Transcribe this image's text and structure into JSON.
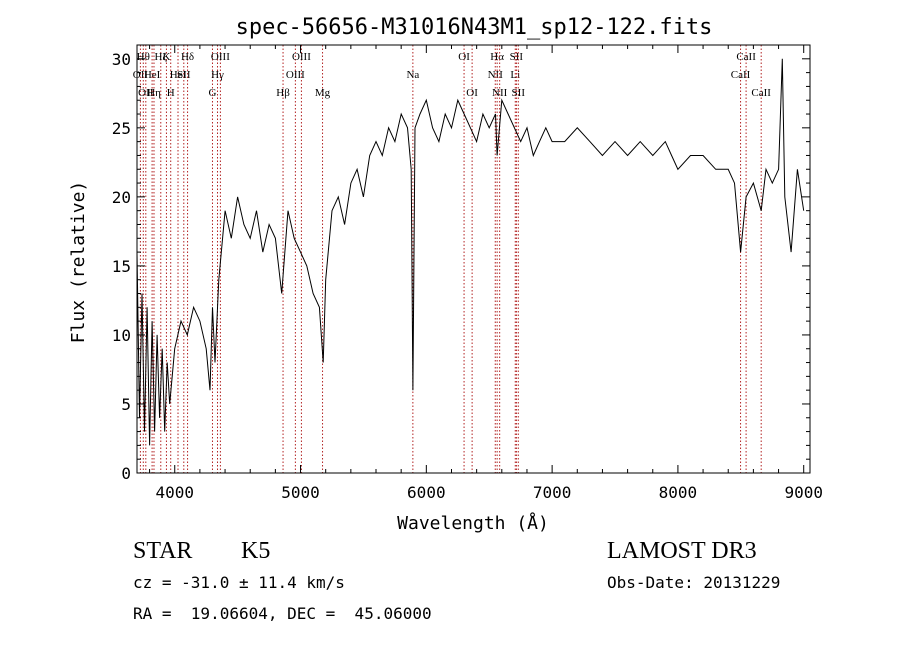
{
  "chart_data": {
    "type": "line",
    "title": "spec-56656-M31016N43M1_sp12-122.fits",
    "xlabel": "Wavelength (Å)",
    "ylabel": "Flux (relative)",
    "xlim": [
      3700,
      9050
    ],
    "ylim": [
      0,
      31
    ],
    "x_ticks": [
      4000,
      5000,
      6000,
      7000,
      8000,
      9000
    ],
    "y_ticks": [
      0,
      5,
      10,
      15,
      20,
      25,
      30
    ],
    "x_tick_labels": [
      "4000",
      "5000",
      "6000",
      "7000",
      "8000",
      "9000"
    ],
    "y_tick_labels": [
      "0",
      "5",
      "10",
      "15",
      "20",
      "25",
      "30"
    ],
    "line_color": "#000000",
    "marker_color": "#b22222",
    "series": [
      {
        "x": [
          3700,
          3720,
          3740,
          3760,
          3780,
          3800,
          3820,
          3840,
          3860,
          3880,
          3900,
          3920,
          3940,
          3960,
          3980,
          4000,
          4050,
          4100,
          4150,
          4200,
          4250,
          4280,
          4300,
          4320,
          4350,
          4400,
          4450,
          4500,
          4550,
          4600,
          4650,
          4700,
          4750,
          4800,
          4850,
          4900,
          4950,
          5000,
          5050,
          5100,
          5150,
          5180,
          5200,
          5250,
          5300,
          5350,
          5400,
          5450,
          5500,
          5550,
          5600,
          5650,
          5700,
          5750,
          5800,
          5850,
          5880,
          5893,
          5910,
          5950,
          6000,
          6050,
          6100,
          6150,
          6200,
          6250,
          6300,
          6350,
          6400,
          6450,
          6500,
          6550,
          6563,
          6600,
          6650,
          6700,
          6750,
          6800,
          6850,
          6900,
          6950,
          7000,
          7100,
          7200,
          7300,
          7400,
          7500,
          7600,
          7700,
          7800,
          7900,
          7950,
          8000,
          8100,
          8200,
          8300,
          8400,
          8450,
          8498,
          8542,
          8600,
          8662,
          8700,
          8750,
          8800,
          8830,
          8850,
          8900,
          8950,
          9000
        ],
        "y": [
          16,
          4,
          13,
          3,
          12,
          2,
          11,
          3,
          10,
          4,
          9,
          3,
          8,
          5,
          7,
          9,
          11,
          10,
          12,
          11,
          9,
          6,
          12,
          8,
          14,
          19,
          17,
          20,
          18,
          17,
          19,
          16,
          18,
          17,
          13,
          19,
          17,
          16,
          15,
          13,
          12,
          8,
          14,
          19,
          20,
          18,
          21,
          22,
          20,
          23,
          24,
          23,
          25,
          24,
          26,
          25,
          22,
          6,
          25,
          26,
          27,
          25,
          24,
          26,
          25,
          27,
          26,
          25,
          24,
          26,
          25,
          26,
          23,
          27,
          26,
          25,
          24,
          25,
          23,
          24,
          25,
          24,
          24,
          25,
          24,
          23,
          24,
          23,
          24,
          23,
          24,
          23,
          22,
          23,
          23,
          22,
          22,
          21,
          16,
          20,
          21,
          19,
          22,
          21,
          22,
          30,
          20,
          16,
          22,
          19
        ]
      }
    ],
    "line_markers": [
      {
        "x": 3727,
        "label": "OII",
        "row": 1
      },
      {
        "x": 3750,
        "label": "Hθ",
        "row": 0
      },
      {
        "x": 3770,
        "label": "OII",
        "row": 2
      },
      {
        "x": 3820,
        "label": "HeI",
        "row": 1
      },
      {
        "x": 3835,
        "label": "Hη",
        "row": 2
      },
      {
        "x": 3889,
        "label": "Hζ",
        "row": 0
      },
      {
        "x": 3934,
        "label": "K",
        "row": 0
      },
      {
        "x": 3968,
        "label": "H",
        "row": 2
      },
      {
        "x": 4026,
        "label": "HeI",
        "row": 1
      },
      {
        "x": 4072,
        "label": "SII",
        "row": 1
      },
      {
        "x": 4102,
        "label": "Hδ",
        "row": 0
      },
      {
        "x": 4300,
        "label": "G",
        "row": 2
      },
      {
        "x": 4340,
        "label": "Hγ",
        "row": 1
      },
      {
        "x": 4363,
        "label": "OIII",
        "row": 0
      },
      {
        "x": 4861,
        "label": "Hβ",
        "row": 2
      },
      {
        "x": 4959,
        "label": "OIII",
        "row": 1
      },
      {
        "x": 5007,
        "label": "OIII",
        "row": 0
      },
      {
        "x": 5175,
        "label": "Mg",
        "row": 2
      },
      {
        "x": 5893,
        "label": "Na",
        "row": 1
      },
      {
        "x": 6300,
        "label": "OI",
        "row": 0
      },
      {
        "x": 6364,
        "label": "OI",
        "row": 2
      },
      {
        "x": 6548,
        "label": "NII",
        "row": 1
      },
      {
        "x": 6563,
        "label": "Hα",
        "row": 0
      },
      {
        "x": 6583,
        "label": "NII",
        "row": 2
      },
      {
        "x": 6707,
        "label": "Li",
        "row": 1
      },
      {
        "x": 6716,
        "label": "SII",
        "row": 0
      },
      {
        "x": 6731,
        "label": "SII",
        "row": 2
      },
      {
        "x": 8498,
        "label": "CaII",
        "row": 1
      },
      {
        "x": 8542,
        "label": "CaII",
        "row": 0
      },
      {
        "x": 8662,
        "label": "CaII",
        "row": 2
      }
    ]
  },
  "info": {
    "object_class": "STAR",
    "subclass": "K5",
    "survey": "LAMOST DR3",
    "redshift_text": "cz = -31.0 ± 11.4 km/s",
    "obs_date": "Obs-Date: 20131229",
    "coords": "RA =  19.06604, DEC =  45.06000"
  }
}
